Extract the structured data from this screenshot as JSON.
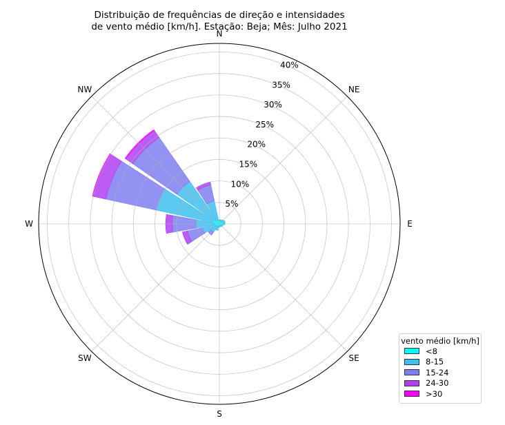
{
  "title_lines": [
    "Distribuição de frequências de direção e intensidades",
    "de vento médio [km/h]. Estação: Beja; Mês: Julho 2021"
  ],
  "chart_data": {
    "type": "windrose",
    "directions": [
      "N",
      "NE",
      "E",
      "SE",
      "S",
      "SW",
      "W",
      "NW"
    ],
    "radial_ticks": [
      "5%",
      "10%",
      "15%",
      "20%",
      "25%",
      "30%",
      "35%",
      "40%"
    ],
    "radial_max": 42,
    "legend": {
      "title": "vento médio [km/h]",
      "placement": "bottom-right",
      "bins": [
        {
          "label": "<8",
          "color": "#00ffff"
        },
        {
          "label": "8-15",
          "color": "#3fc0f0"
        },
        {
          "label": "15-24",
          "color": "#7f7ff0"
        },
        {
          "label": "24-30",
          "color": "#b040f0"
        },
        {
          "label": ">30",
          "color": "#ff00ff"
        }
      ]
    },
    "sectors": [
      {
        "direction_deg": 0,
        "cumulative_pct": [
          0.6,
          1.0,
          1.0,
          1.0,
          1.0
        ]
      },
      {
        "direction_deg": 22.5,
        "cumulative_pct": [
          0.6,
          1.0,
          1.0,
          1.0,
          1.0
        ]
      },
      {
        "direction_deg": 45,
        "cumulative_pct": [
          0.6,
          1.2,
          1.2,
          1.2,
          1.2
        ]
      },
      {
        "direction_deg": 67.5,
        "cumulative_pct": [
          0.8,
          1.4,
          1.4,
          1.4,
          1.4
        ]
      },
      {
        "direction_deg": 90,
        "cumulative_pct": [
          0.8,
          1.3,
          1.3,
          1.3,
          1.3
        ]
      },
      {
        "direction_deg": 112.5,
        "cumulative_pct": [
          0.6,
          0.9,
          0.9,
          0.9,
          0.9
        ]
      },
      {
        "direction_deg": 135,
        "cumulative_pct": [
          0.5,
          0.8,
          0.8,
          0.8,
          0.8
        ]
      },
      {
        "direction_deg": 157.5,
        "cumulative_pct": [
          0.4,
          0.7,
          0.7,
          0.7,
          0.7
        ]
      },
      {
        "direction_deg": 180,
        "cumulative_pct": [
          0.4,
          0.8,
          0.8,
          0.8,
          0.8
        ]
      },
      {
        "direction_deg": 202.5,
        "cumulative_pct": [
          0.6,
          1.6,
          1.6,
          1.6,
          1.6
        ]
      },
      {
        "direction_deg": 225,
        "cumulative_pct": [
          0.7,
          2.4,
          3.2,
          3.2,
          3.2
        ]
      },
      {
        "direction_deg": 247.5,
        "cumulative_pct": [
          0.8,
          4.0,
          7.6,
          8.8,
          8.8
        ]
      },
      {
        "direction_deg": 270,
        "cumulative_pct": [
          1.0,
          5.5,
          11.0,
          12.5,
          12.5
        ]
      },
      {
        "direction_deg": 292.5,
        "cumulative_pct": [
          1.6,
          15.0,
          27.0,
          30.0,
          30.2
        ]
      },
      {
        "direction_deg": 315,
        "cumulative_pct": [
          1.0,
          12.0,
          24.5,
          26.5,
          26.7
        ]
      },
      {
        "direction_deg": 337.5,
        "cumulative_pct": [
          0.8,
          5.5,
          9.3,
          10.0,
          10.0
        ]
      }
    ]
  }
}
